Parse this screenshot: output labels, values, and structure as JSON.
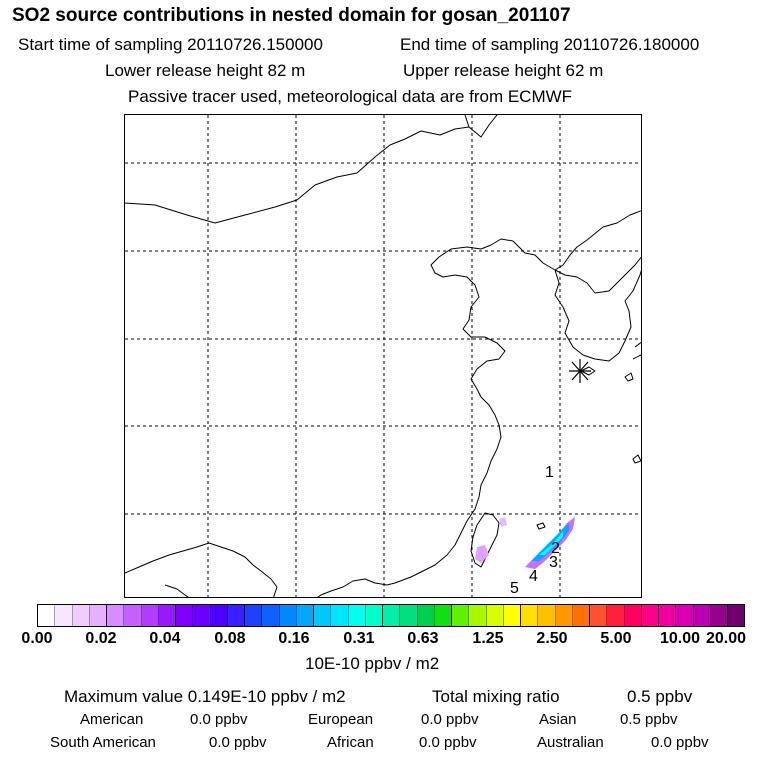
{
  "header": {
    "title": "SO2 source contributions in nested domain for gosan_201107",
    "start": "Start time of sampling 20110726.150000",
    "end": "End time of sampling 20110726.180000",
    "lower": "Lower release height   82 m",
    "upper": "Upper release height   62 m",
    "tracer": "Passive tracer used, meteorological data are from ECMWF"
  },
  "map": {
    "point_labels": [
      "1",
      "2",
      "3",
      "4",
      "5"
    ],
    "receptor_marker": "asterisk",
    "plume_colors": [
      "#8a00ff",
      "#d070ff",
      "#00aaff",
      "#00ffff",
      "#3050ff"
    ]
  },
  "colorbar": {
    "colors": [
      "#ffffff",
      "#f8e6ff",
      "#f0ccff",
      "#e6b0ff",
      "#d88cff",
      "#c560ff",
      "#b03cff",
      "#9a18ff",
      "#8000ff",
      "#6a00ff",
      "#4b00ff",
      "#3a20ff",
      "#2040ff",
      "#1060ff",
      "#0088ff",
      "#00a8ff",
      "#00c8ff",
      "#00e6ff",
      "#00ffee",
      "#00ffcc",
      "#00f0a8",
      "#00e080",
      "#00d050",
      "#10e010",
      "#60f000",
      "#a8f800",
      "#d8ff00",
      "#ffff00",
      "#ffe000",
      "#ffc000",
      "#ff9800",
      "#ff7000",
      "#ff5030",
      "#ff2040",
      "#ff0060",
      "#ff0088",
      "#f000a0",
      "#d800b0",
      "#b800b0",
      "#980090",
      "#700070"
    ],
    "tick_labels": [
      "0.00",
      "0.02",
      "0.04",
      "0.08",
      "0.16",
      "0.31",
      "0.63",
      "1.25",
      "2.50",
      "5.00",
      "10.00",
      "20.00"
    ],
    "unit": "10E-10 ppbv / m2"
  },
  "summary": {
    "max_value": "Maximum value  0.149E-10 ppbv / m2",
    "total_label": "Total mixing ratio",
    "total_value": "0.5 ppbv",
    "regions": [
      {
        "name": "American",
        "value": "0.0 ppbv"
      },
      {
        "name": "European",
        "value": "0.0 ppbv"
      },
      {
        "name": "Asian",
        "value": "0.5 ppbv"
      },
      {
        "name": "South American",
        "value": "0.0 ppbv"
      },
      {
        "name": "African",
        "value": "0.0 ppbv"
      },
      {
        "name": "Australian",
        "value": "0.0 ppbv"
      }
    ]
  }
}
